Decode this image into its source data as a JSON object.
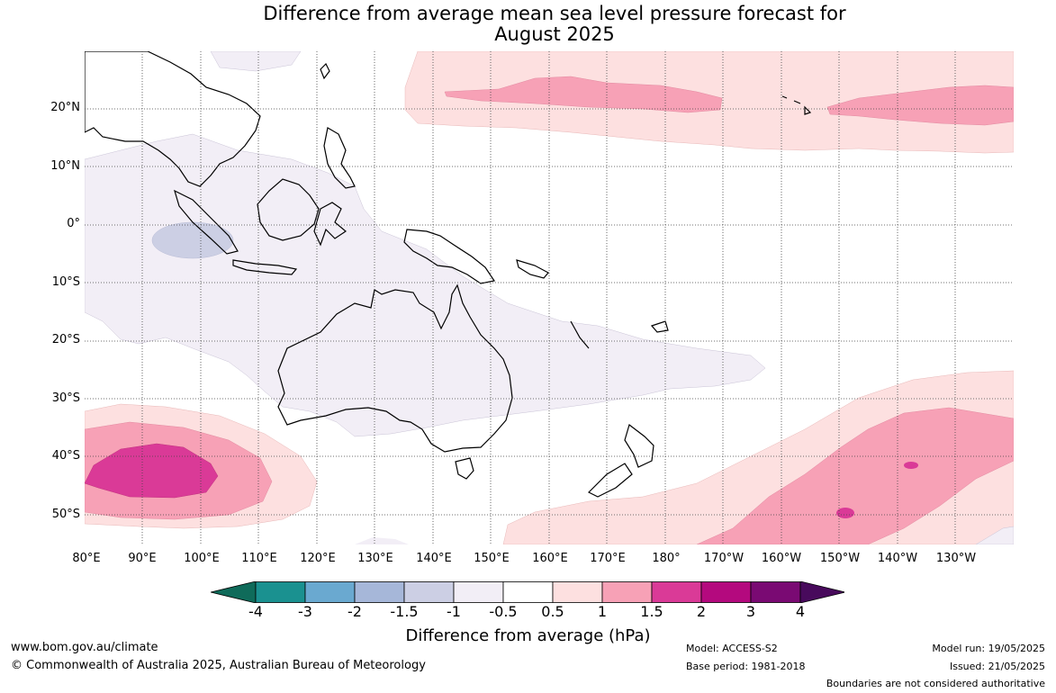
{
  "title_line1": "Difference from average mean sea level pressure forecast for",
  "title_line2": "August 2025",
  "latitude_labels": [
    "20°N",
    "10°N",
    "0°",
    "10°S",
    "20°S",
    "30°S",
    "40°S",
    "50°S"
  ],
  "longitude_labels": [
    "80°E",
    "90°E",
    "100°E",
    "110°E",
    "120°E",
    "130°E",
    "140°E",
    "150°E",
    "160°E",
    "170°E",
    "180°",
    "170°W",
    "160°W",
    "150°W",
    "140°W",
    "130°W"
  ],
  "legend": {
    "title": "Difference from average (hPa)",
    "ticks": [
      "-4",
      "-3",
      "-2",
      "-1.5",
      "-1",
      "-0.5",
      "0.5",
      "1",
      "1.5",
      "2",
      "3",
      "4"
    ],
    "colors": [
      "#0f6b5a",
      "#1a9190",
      "#6aa9d0",
      "#a6b7d9",
      "#cccfe4",
      "#f2eef6",
      "#ffffff",
      "#fde0e0",
      "#f7a1b6",
      "#da3a97",
      "#b4097e",
      "#7a0a73",
      "#480a5c"
    ]
  },
  "footer": {
    "website": "www.bom.gov.au/climate",
    "copyright": "© Commonwealth of Australia 2025, Australian Bureau of Meteorology",
    "model": "Model: ACCESS-S2",
    "base_period": "Base period: 1981-2018",
    "model_run": "Model run: 19/05/2025",
    "issued": "Issued: 21/05/2025",
    "disclaimer": "Boundaries are not considered authoritative"
  }
}
